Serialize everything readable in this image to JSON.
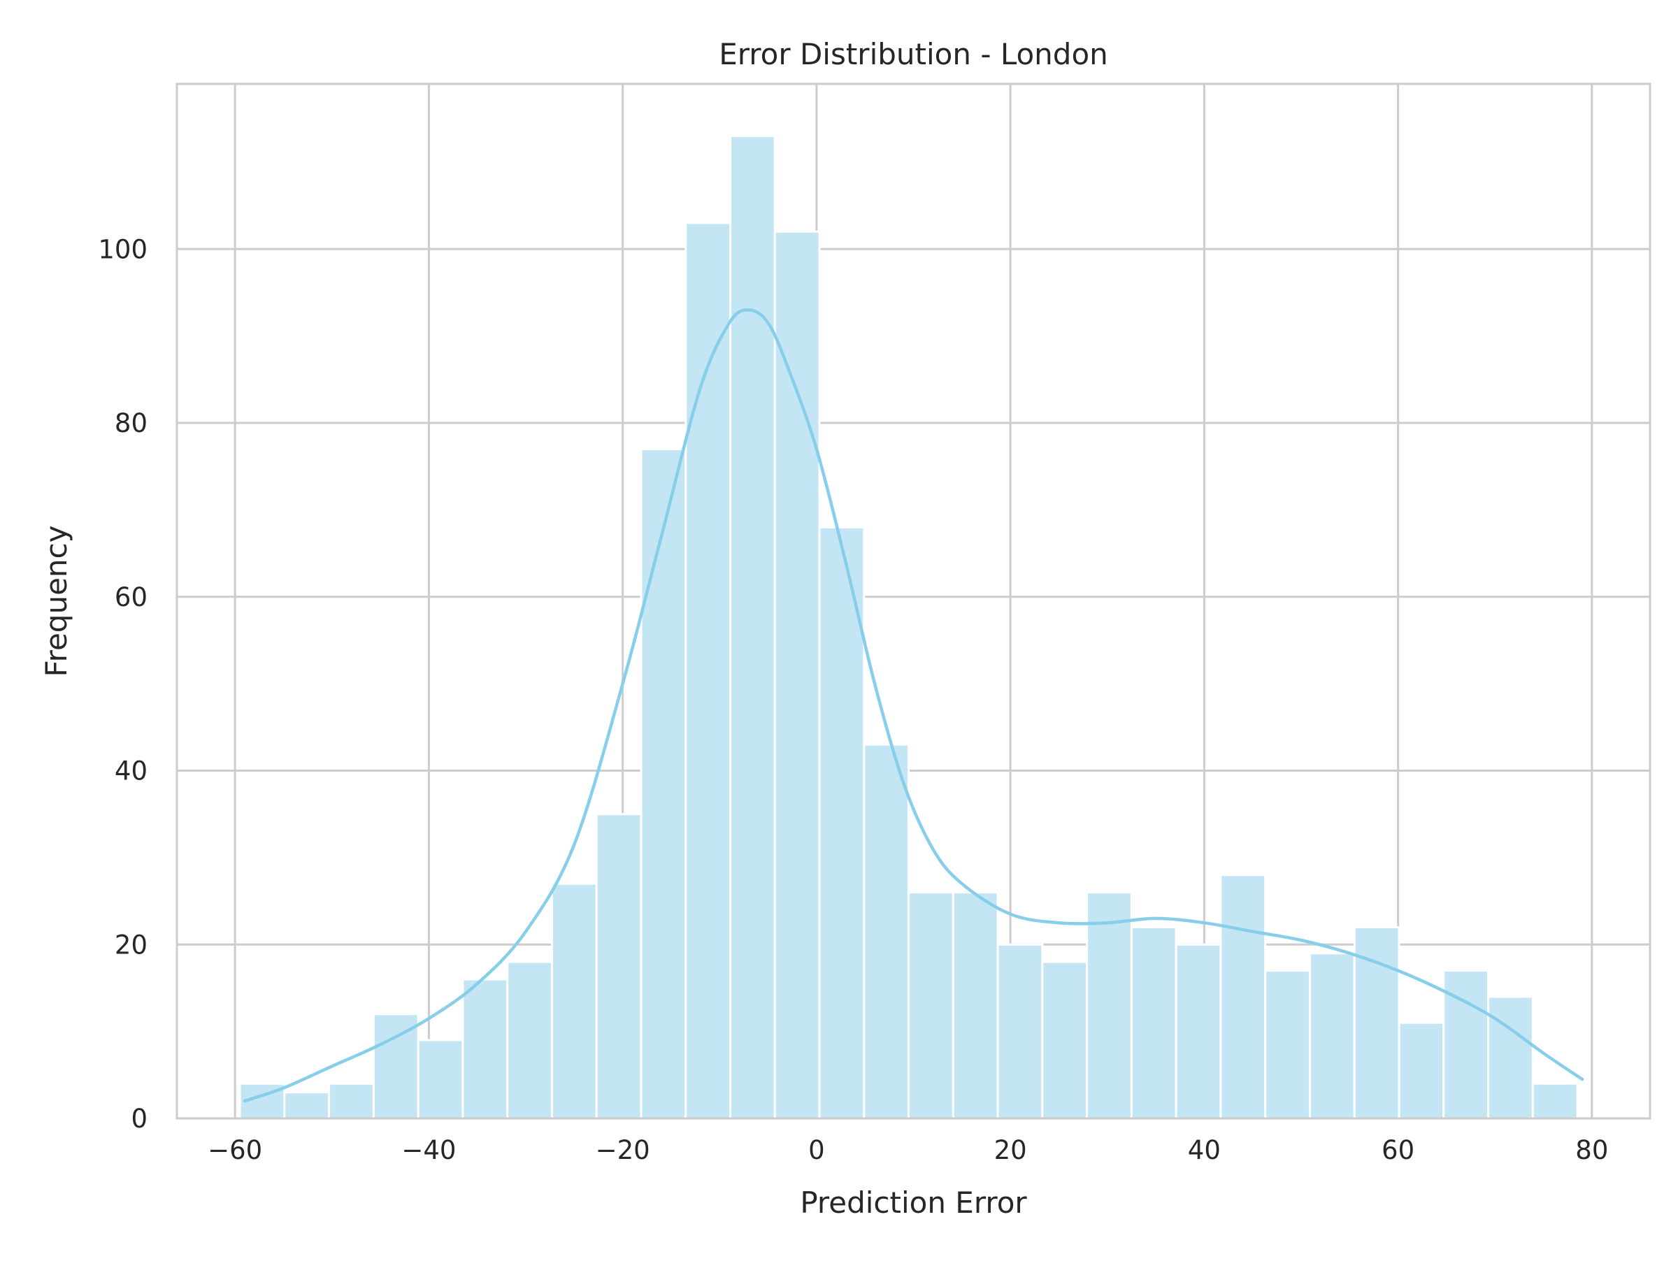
{
  "chart_data": {
    "type": "bar",
    "title": "Error Distribution - London",
    "xlabel": "Prediction Error",
    "ylabel": "Frequency",
    "xlim": [
      -66,
      86
    ],
    "ylim": [
      0,
      119
    ],
    "x_ticks": [
      -60,
      -40,
      -20,
      0,
      20,
      40,
      60,
      80
    ],
    "x_tick_labels": [
      "−60",
      "−40",
      "−20",
      "0",
      "20",
      "40",
      "60",
      "80"
    ],
    "y_ticks": [
      0,
      20,
      40,
      60,
      80,
      100
    ],
    "y_tick_labels": [
      "0",
      "20",
      "40",
      "60",
      "80",
      "100"
    ],
    "grid": true,
    "bin_start": -59.5,
    "bin_width": 4.6,
    "series": [
      {
        "kind": "histogram",
        "values": [
          4,
          3,
          4,
          12,
          9,
          16,
          18,
          27,
          35,
          77,
          103,
          113,
          102,
          68,
          43,
          26,
          26,
          20,
          18,
          26,
          22,
          20,
          28,
          17,
          19,
          22,
          11,
          17,
          14,
          4
        ]
      },
      {
        "kind": "kde",
        "x": [
          -59,
          -55,
          -50,
          -45,
          -40,
          -35,
          -30,
          -25,
          -20,
          -16,
          -12,
          -9,
          -7,
          -5,
          -3,
          0,
          3,
          6,
          9,
          12,
          15,
          20,
          25,
          30,
          35,
          40,
          45,
          50,
          55,
          60,
          65,
          70,
          75,
          79
        ],
        "y": [
          2,
          3.5,
          6,
          8.5,
          11.5,
          15.5,
          21.5,
          31.5,
          50,
          67,
          84,
          91.5,
          93,
          91.5,
          86.5,
          77,
          64,
          50,
          38.5,
          31,
          27,
          23.5,
          22.5,
          22.5,
          23,
          22.5,
          21.5,
          20.5,
          19,
          17,
          14.5,
          11.5,
          7.5,
          4.5
        ]
      }
    ],
    "colors": {
      "bar_fill": "#c4e5f4",
      "bar_edge": "#ffffff",
      "kde_line": "#87ceeb",
      "grid": "#cccccc",
      "frame": "#cccccc",
      "text": "#262626"
    }
  }
}
